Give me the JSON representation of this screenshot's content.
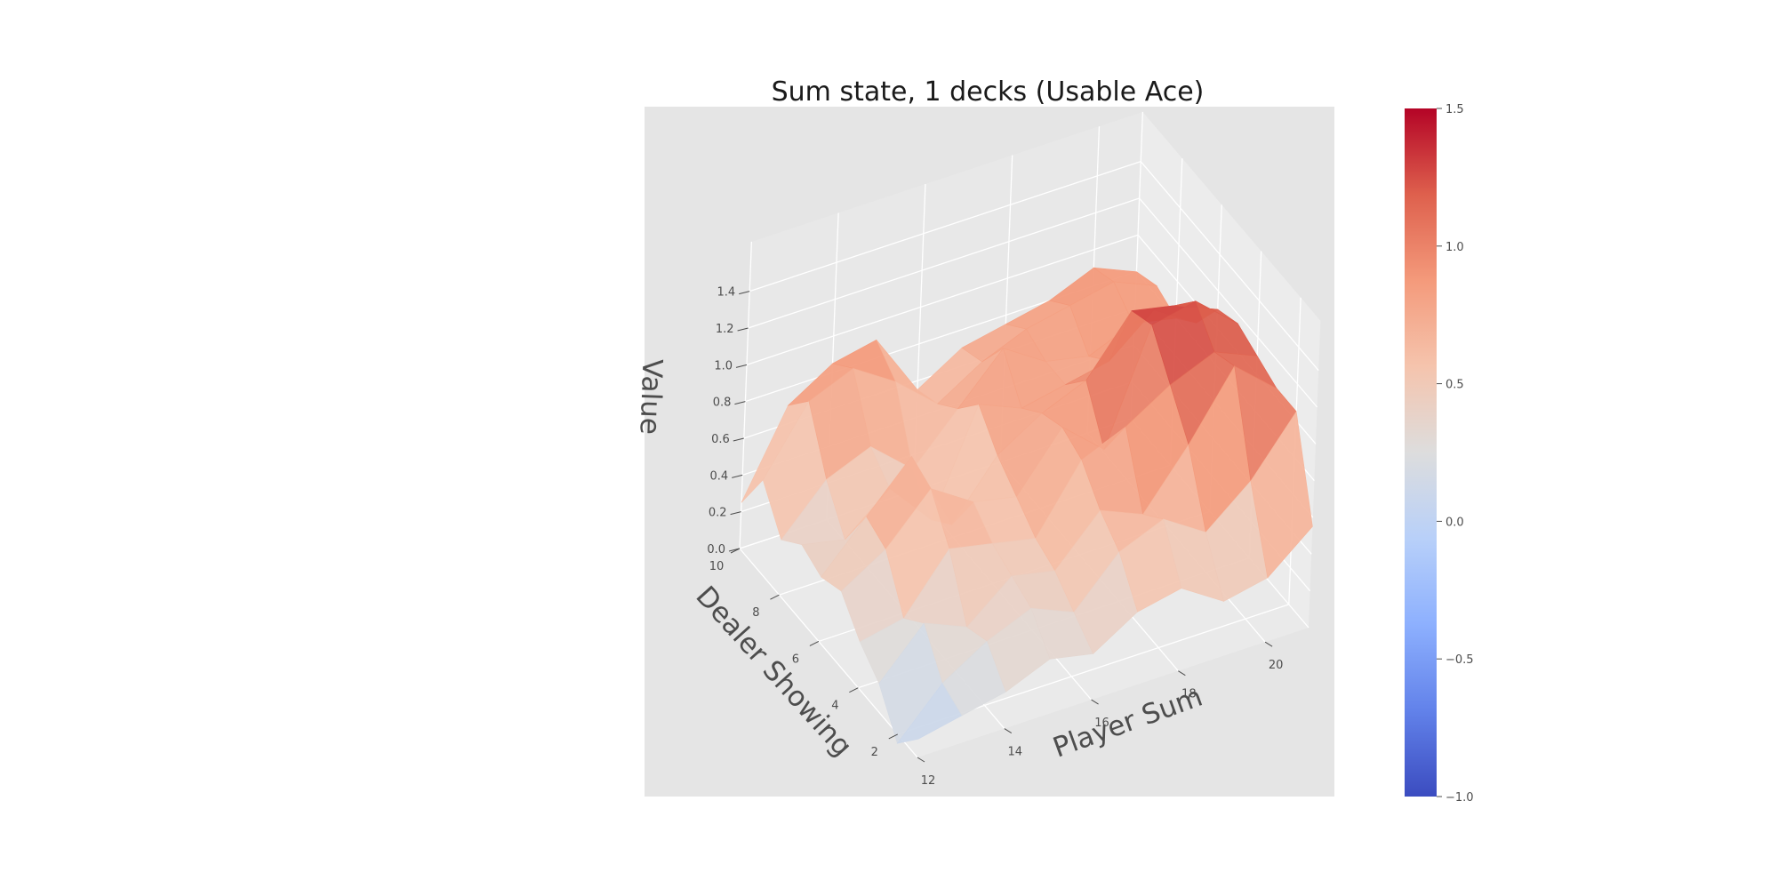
{
  "chart_data": {
    "type": "surface3d",
    "title": "Sum state, 1 decks (Usable Ace)",
    "xlabel": "Player Sum",
    "ylabel": "Dealer Showing",
    "zlabel": "Value",
    "x": [
      12,
      13,
      14,
      15,
      16,
      17,
      18,
      19,
      20,
      21
    ],
    "y": [
      1,
      2,
      3,
      4,
      5,
      6,
      7,
      8,
      9,
      10
    ],
    "z": [
      [
        0.1,
        0.15,
        0.2,
        0.3,
        0.25,
        0.4,
        0.45,
        0.3,
        0.35,
        0.55
      ],
      [
        -0.05,
        0.2,
        0.35,
        0.45,
        0.35,
        0.6,
        0.7,
        0.55,
        0.75,
        1.05
      ],
      [
        0.15,
        0.4,
        0.3,
        0.5,
        0.45,
        0.7,
        0.6,
        0.9,
        1.25,
        1.05
      ],
      [
        0.25,
        0.3,
        0.6,
        0.55,
        0.5,
        0.85,
        0.95,
        1.1,
        1.2,
        1.1
      ],
      [
        0.4,
        0.55,
        0.8,
        0.65,
        0.6,
        0.9,
        0.7,
        1.3,
        1.35,
        1.15
      ],
      [
        0.35,
        0.6,
        0.85,
        0.4,
        0.7,
        0.85,
        0.95,
        1.25,
        1.2,
        1.1
      ],
      [
        0.4,
        0.35,
        0.55,
        0.3,
        0.85,
        0.75,
        0.8,
        0.85,
        1.05,
        0.9
      ],
      [
        0.3,
        0.55,
        0.65,
        0.45,
        0.7,
        0.95,
        0.8,
        0.75,
        0.85,
        0.8
      ],
      [
        0.5,
        0.85,
        0.95,
        0.8,
        0.6,
        0.75,
        0.85,
        0.9,
        0.95,
        0.85
      ],
      [
        0.25,
        0.7,
        0.85,
        0.9,
        0.55,
        0.7,
        0.75,
        0.8,
        0.9,
        0.8
      ]
    ],
    "xticks": [
      12,
      14,
      16,
      18,
      20
    ],
    "yticks": [
      2,
      4,
      6,
      8,
      10
    ],
    "zticks": [
      "0.0",
      "0.2",
      "0.4",
      "0.6",
      "0.8",
      "1.0",
      "1.2",
      "1.4"
    ],
    "xlim": [
      12,
      21
    ],
    "ylim": [
      1,
      10
    ],
    "zlim": [
      0,
      1.5
    ],
    "grid": true,
    "colormap": "coolwarm",
    "colorbar": {
      "range": [
        -1.0,
        1.5
      ],
      "ticks": [
        "−1.0",
        "−0.5",
        "0.0",
        "0.5",
        "1.0",
        "1.5"
      ]
    },
    "background": "#e5e5e5"
  }
}
